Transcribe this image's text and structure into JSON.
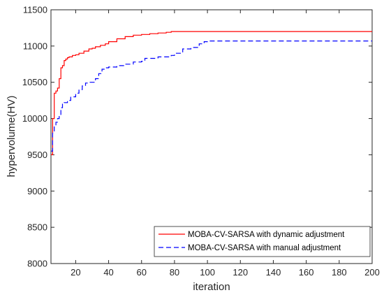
{
  "chart_data": {
    "type": "line",
    "title": "",
    "xlabel": "iteration",
    "ylabel": "hypervolume(HV)",
    "xlim": [
      5,
      200
    ],
    "ylim": [
      8000,
      11500
    ],
    "xticks": [
      20,
      40,
      60,
      80,
      100,
      120,
      140,
      160,
      180,
      200
    ],
    "yticks": [
      8000,
      8500,
      9000,
      9500,
      10000,
      10500,
      11000,
      11500
    ],
    "legend_position": "bottom-right",
    "grid": false,
    "series": [
      {
        "name": "MOBA-CV-SARSA with dynamic adjustment",
        "color": "#ff0000",
        "style": "solid",
        "x": [
          5,
          6,
          7,
          8,
          9,
          10,
          11,
          12,
          13,
          14,
          15,
          16,
          18,
          20,
          22,
          25,
          28,
          30,
          32,
          35,
          38,
          40,
          45,
          50,
          55,
          60,
          65,
          70,
          75,
          78,
          80,
          90,
          100,
          120,
          140,
          160,
          180,
          200
        ],
        "y": [
          9500,
          10000,
          10350,
          10380,
          10420,
          10550,
          10700,
          10730,
          10800,
          10820,
          10840,
          10850,
          10870,
          10880,
          10900,
          10930,
          10960,
          10970,
          10990,
          11010,
          11030,
          11060,
          11100,
          11130,
          11150,
          11160,
          11170,
          11180,
          11190,
          11200,
          11200,
          11200,
          11200,
          11200,
          11200,
          11200,
          11200,
          11200
        ]
      },
      {
        "name": "MOBA-CV-SARSA with manual adjustment",
        "color": "#0000ff",
        "style": "dashed",
        "x": [
          5,
          6,
          7,
          8,
          9,
          10,
          11,
          12,
          13,
          15,
          17,
          20,
          22,
          24,
          26,
          28,
          30,
          32,
          34,
          36,
          38,
          40,
          45,
          50,
          55,
          60,
          62,
          70,
          78,
          80,
          85,
          90,
          95,
          98,
          100,
          120,
          140,
          160,
          180,
          200
        ],
        "y": [
          9550,
          9800,
          9900,
          9950,
          10000,
          10050,
          10150,
          10200,
          10220,
          10250,
          10300,
          10350,
          10400,
          10450,
          10490,
          10500,
          10500,
          10550,
          10620,
          10680,
          10700,
          10710,
          10730,
          10750,
          10780,
          10790,
          10830,
          10850,
          10870,
          10900,
          10960,
          10980,
          11030,
          11060,
          11070,
          11070,
          11070,
          11070,
          11070,
          11070
        ]
      }
    ]
  }
}
